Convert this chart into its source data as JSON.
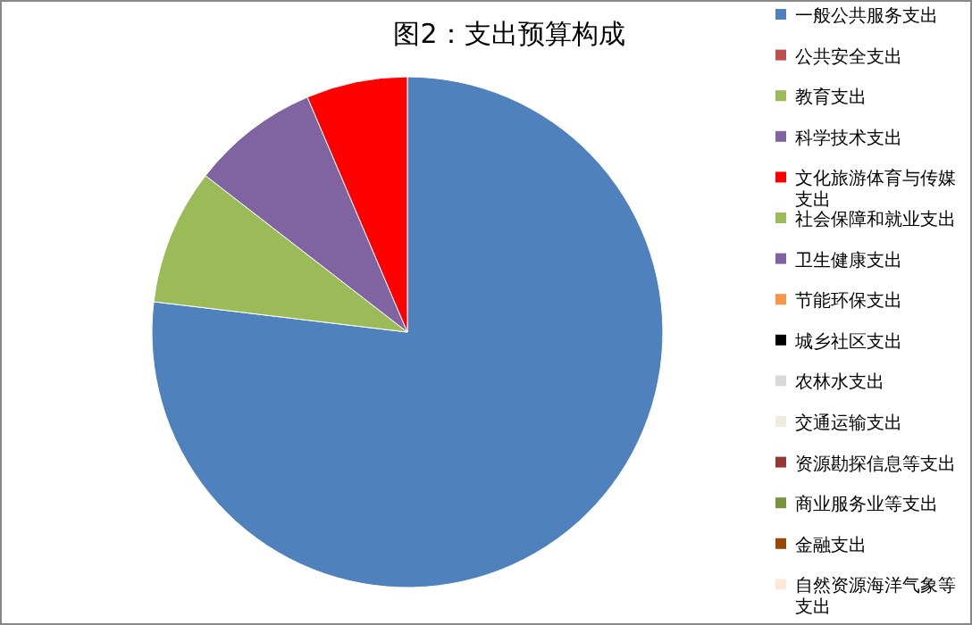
{
  "chart_data": {
    "type": "pie",
    "title": "图2：支出预算构成",
    "legend": "right",
    "categories": [
      "一般公共服务支出",
      "公共安全支出",
      "教育支出",
      "科学技术支出",
      "文化旅游体育与传媒支出",
      "社会保障和就业支出",
      "卫生健康支出",
      "节能环保支出",
      "城乡社区支出",
      "农林水支出",
      "交通运输支出",
      "资源勘探信息等支出",
      "商业服务业等支出",
      "金融支出",
      "自然资源海洋气象等支出"
    ],
    "values": [
      76.9,
      0,
      8.6,
      8.1,
      6.4,
      0,
      0,
      0,
      0,
      0,
      0,
      0,
      0,
      0,
      0
    ],
    "colors": [
      "#4f81bd",
      "#c0504d",
      "#9bbb59",
      "#8064a2",
      "#ff0000",
      "#9bbb59",
      "#8064a2",
      "#f79646",
      "#000000",
      "#d9d9d9",
      "#eeece1",
      "#953735",
      "#77933c",
      "#984807",
      "#fde9d9"
    ]
  }
}
